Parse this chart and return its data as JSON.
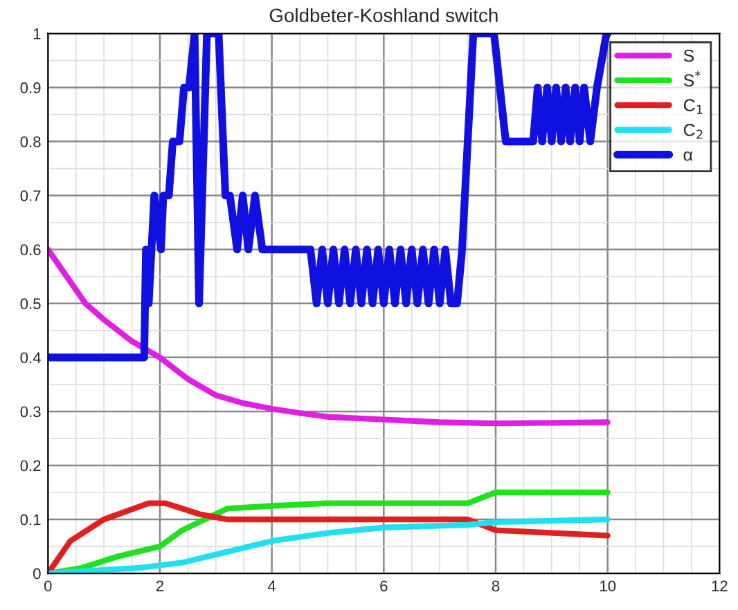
{
  "chart_data": {
    "type": "line",
    "title": "Goldbeter-Koshland switch",
    "xlim": [
      0,
      12
    ],
    "xticks": [
      0,
      2,
      4,
      6,
      8,
      10,
      12
    ],
    "ylim": [
      0,
      1
    ],
    "yticks": [
      0,
      0.1,
      0.2,
      0.3,
      0.4,
      0.5,
      0.6,
      0.7,
      0.8,
      0.9,
      1
    ],
    "grid": true,
    "legend": "top right",
    "marker": "none",
    "line_style": "solid",
    "series": [
      {
        "name": "S",
        "color": "#e020e0",
        "x": [
          0,
          0.67,
          1,
          1.5,
          2,
          2.5,
          3,
          3.5,
          4,
          4.5,
          5,
          6,
          7,
          8,
          9,
          10
        ],
        "values": [
          0.6,
          0.5,
          0.47,
          0.43,
          0.4,
          0.36,
          0.33,
          0.315,
          0.305,
          0.297,
          0.29,
          0.285,
          0.28,
          0.278,
          0.279,
          0.28
        ]
      },
      {
        "name": "S$^{*}$",
        "color": "#20e020",
        "x": [
          0,
          0.6,
          1.2,
          2,
          2.4,
          2.8,
          3.2,
          4,
          5,
          7.5,
          8,
          10
        ],
        "values": [
          0,
          0.01,
          0.03,
          0.05,
          0.08,
          0.1,
          0.12,
          0.125,
          0.13,
          0.13,
          0.15,
          0.15
        ]
      },
      {
        "name": "C$_{1}$",
        "color": "#e02020",
        "x": [
          0,
          0.4,
          1,
          1.8,
          2.1,
          2.7,
          3.2,
          7.5,
          8,
          10
        ],
        "values": [
          0,
          0.06,
          0.1,
          0.13,
          0.13,
          0.11,
          0.1,
          0.1,
          0.08,
          0.07
        ]
      },
      {
        "name": "C$_{2}$",
        "color": "#20e0f0",
        "x": [
          0,
          1.6,
          2.4,
          3.2,
          4,
          5,
          6,
          7.5,
          8,
          10
        ],
        "values": [
          0,
          0.01,
          0.02,
          0.04,
          0.06,
          0.075,
          0.085,
          0.09,
          0.095,
          0.1
        ]
      },
      {
        "name": "α",
        "color": "#1010e0",
        "x": [
          0,
          1.72,
          1.75,
          1.8,
          1.85,
          1.9,
          2.02,
          2.06,
          2.16,
          2.23,
          2.35,
          2.43,
          2.52,
          2.62,
          2.7,
          2.84,
          3.05,
          3.17,
          3.25,
          3.38,
          3.48,
          3.58,
          3.7,
          3.83,
          4.69,
          4.8,
          4.9,
          5.0,
          5.1,
          5.2,
          5.3,
          5.4,
          5.5,
          5.6,
          5.7,
          5.8,
          5.9,
          6.0,
          6.1,
          6.2,
          6.3,
          6.4,
          6.5,
          6.6,
          6.7,
          6.8,
          6.9,
          7.0,
          7.1,
          7.2,
          7.31,
          7.4,
          7.6,
          7.97,
          8.18,
          8.67,
          8.75,
          8.83,
          8.92,
          9.0,
          9.08,
          9.17,
          9.25,
          9.33,
          9.42,
          9.5,
          9.58,
          9.69,
          9.81,
          9.98,
          10
        ],
        "values": [
          0.4,
          0.4,
          0.6,
          0.5,
          0.6,
          0.7,
          0.6,
          0.7,
          0.7,
          0.8,
          0.8,
          0.9,
          0.9,
          1.0,
          0.5,
          1.0,
          1.0,
          0.7,
          0.7,
          0.6,
          0.7,
          0.6,
          0.7,
          0.6,
          0.6,
          0.5,
          0.6,
          0.5,
          0.6,
          0.5,
          0.6,
          0.5,
          0.6,
          0.5,
          0.6,
          0.5,
          0.6,
          0.5,
          0.6,
          0.5,
          0.6,
          0.5,
          0.6,
          0.5,
          0.6,
          0.5,
          0.6,
          0.5,
          0.6,
          0.5,
          0.5,
          0.6,
          1.0,
          1.0,
          0.8,
          0.8,
          0.9,
          0.8,
          0.9,
          0.8,
          0.9,
          0.8,
          0.9,
          0.8,
          0.9,
          0.8,
          0.9,
          0.8,
          0.9,
          1.0,
          1.0
        ]
      }
    ]
  }
}
